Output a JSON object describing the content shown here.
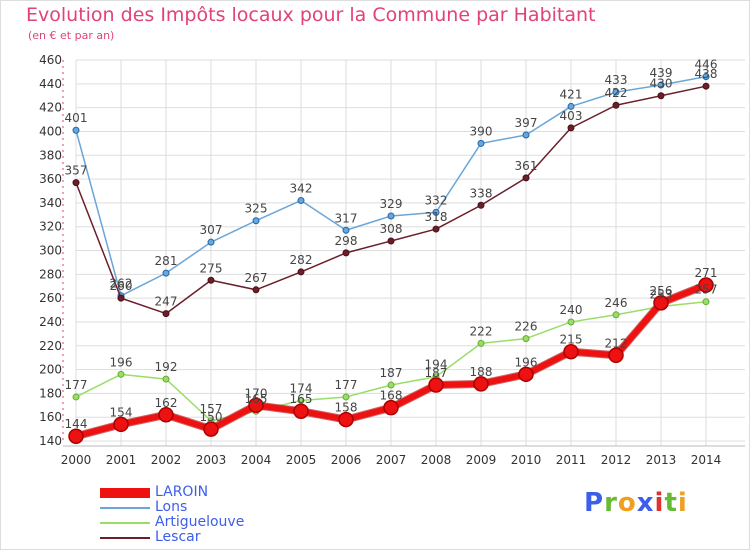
{
  "header": {
    "title": "Evolution des Impôts locaux pour la Commune par Habitant",
    "subtitle": "(en € et par an)"
  },
  "logo": {
    "text": "Proxiti"
  },
  "colors": {
    "title": "#e0427a",
    "legend_text": "#3d5ee8",
    "grid": "#dddddd",
    "axis_red": "#e0427a"
  },
  "chart_data": {
    "type": "line",
    "title": "Evolution des Impôts locaux pour la Commune par Habitant",
    "subtitle": "(en € et par an)",
    "xlabel": "",
    "ylabel": "",
    "x": [
      2000,
      2001,
      2002,
      2003,
      2004,
      2005,
      2006,
      2007,
      2008,
      2009,
      2010,
      2011,
      2012,
      2013,
      2014
    ],
    "ylim": [
      140,
      460
    ],
    "yticks": [
      140,
      160,
      180,
      200,
      220,
      240,
      260,
      280,
      300,
      320,
      340,
      360,
      380,
      400,
      420,
      440,
      460
    ],
    "grid": true,
    "legend_position": "bottom-left",
    "series": [
      {
        "name": "LAROIN",
        "color": "#ee1111",
        "line_width": 6,
        "marker": 7,
        "values": [
          144,
          154,
          162,
          150,
          170,
          165,
          158,
          168,
          187,
          188,
          196,
          215,
          212,
          256,
          271
        ],
        "labels": [
          "144",
          "154",
          "162",
          "150",
          "170",
          "165",
          "158",
          "168",
          "187",
          "188",
          "196",
          "215",
          "212",
          "256",
          "271"
        ]
      },
      {
        "name": "Lons",
        "color": "#6aa6d8",
        "line_width": 1.5,
        "marker": 3,
        "values": [
          401,
          262,
          281,
          307,
          325,
          342,
          317,
          329,
          332,
          390,
          397,
          421,
          433,
          439,
          446
        ],
        "labels": [
          "401",
          "262",
          "281",
          "307",
          "325",
          "342",
          "317",
          "329",
          "332",
          "390",
          "397",
          "421",
          "433",
          "439",
          "446"
        ]
      },
      {
        "name": "Artiguelouve",
        "color": "#99dd66",
        "line_width": 1.5,
        "marker": 3,
        "values": [
          177,
          196,
          192,
          157,
          165,
          174,
          177,
          187,
          194,
          222,
          226,
          240,
          246,
          253,
          257
        ],
        "labels": [
          "177",
          "196",
          "192",
          "157",
          "165",
          "174",
          "177",
          "187",
          "194",
          "222",
          "226",
          "240",
          "246",
          "253",
          "257"
        ]
      },
      {
        "name": "Lescar",
        "color": "#6b1f2a",
        "line_width": 1.5,
        "marker": 3,
        "values": [
          357,
          260,
          247,
          275,
          267,
          282,
          298,
          308,
          318,
          338,
          361,
          403,
          422,
          430,
          438
        ],
        "labels": [
          "357",
          "260",
          "247",
          "275",
          "267",
          "282",
          "298",
          "308",
          "318",
          "338",
          "361",
          "403",
          "422",
          "430",
          "438"
        ]
      }
    ]
  }
}
